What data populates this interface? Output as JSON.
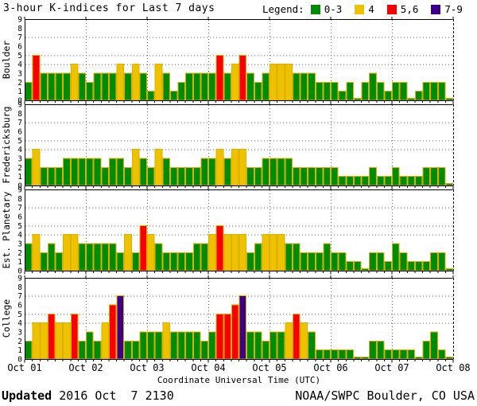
{
  "title": "3-hour K-indices for Last 7 days",
  "legend": {
    "label": "Legend:",
    "items": [
      {
        "label": "0-3",
        "color": "#008C00"
      },
      {
        "label": "4",
        "color": "#EDC301"
      },
      {
        "label": "5,6",
        "color": "#F80000"
      },
      {
        "label": "7-9",
        "color": "#3C0088"
      }
    ]
  },
  "x_axis": {
    "label": "Coordinate Universal Time (UTC)",
    "tick_labels": [
      "Oct 01",
      "Oct 02",
      "Oct 03",
      "Oct 04",
      "Oct 05",
      "Oct 06",
      "Oct 07",
      "Oct 08"
    ]
  },
  "footer": {
    "updated_label": "Updated",
    "updated_value": "2016 Oct  7 2130",
    "source": "NOAA/SWPC Boulder, CO USA"
  },
  "chart_data": {
    "type": "bar",
    "description": "3-hour K-indices, 8 bars per UTC day over 7 days (56 bars per station)",
    "ylim": [
      0,
      9
    ],
    "y_ticks": [
      0,
      1,
      2,
      3,
      4,
      5,
      6,
      7,
      8,
      9
    ],
    "threshold_gridlines": [
      4,
      5,
      7
    ],
    "days": 7,
    "bars_per_day": 8,
    "grid": "dotted day boundaries and K=4,5,7 levels",
    "legend_position": "top-right",
    "color_rules": [
      {
        "range": "0-3",
        "color": "#008C00"
      },
      {
        "range": "4",
        "color": "#EDC301"
      },
      {
        "range": "5,6",
        "color": "#F80000"
      },
      {
        "range": "7-9",
        "color": "#3C0088"
      }
    ],
    "bar_outline_color": "#DFAF00",
    "panels": [
      {
        "station": "Boulder",
        "k_by_day": [
          [
            2,
            5,
            3,
            3,
            3,
            3,
            4,
            3
          ],
          [
            2,
            3,
            3,
            3,
            4,
            3,
            4,
            3
          ],
          [
            1,
            4,
            3,
            1,
            2,
            3,
            3,
            3
          ],
          [
            3,
            5,
            3,
            4,
            5,
            3,
            2,
            3
          ],
          [
            4,
            4,
            4,
            3,
            3,
            3,
            2,
            2
          ],
          [
            2,
            1,
            2,
            0,
            2,
            3,
            2,
            1
          ],
          [
            2,
            2,
            0,
            1,
            2,
            2,
            2,
            0
          ]
        ]
      },
      {
        "station": "Fredericksburg",
        "k_by_day": [
          [
            3,
            4,
            2,
            2,
            2,
            3,
            3,
            3
          ],
          [
            3,
            3,
            2,
            3,
            3,
            2,
            4,
            3
          ],
          [
            2,
            4,
            3,
            2,
            2,
            2,
            2,
            3
          ],
          [
            3,
            4,
            3,
            4,
            4,
            2,
            2,
            3
          ],
          [
            3,
            3,
            3,
            2,
            2,
            2,
            2,
            2
          ],
          [
            2,
            1,
            1,
            1,
            1,
            2,
            1,
            1
          ],
          [
            2,
            1,
            1,
            1,
            2,
            2,
            2,
            0
          ]
        ]
      },
      {
        "station": "Est. Planetary",
        "k_by_day": [
          [
            3,
            4,
            2,
            3,
            2,
            4,
            4,
            3
          ],
          [
            3,
            3,
            3,
            3,
            2,
            4,
            2,
            5
          ],
          [
            4,
            3,
            2,
            2,
            2,
            2,
            3,
            3
          ],
          [
            4,
            5,
            4,
            4,
            4,
            2,
            3,
            4
          ],
          [
            4,
            4,
            3,
            3,
            2,
            2,
            2,
            3
          ],
          [
            2,
            2,
            1,
            1,
            0,
            2,
            2,
            1
          ],
          [
            3,
            2,
            1,
            1,
            1,
            2,
            2,
            0
          ]
        ]
      },
      {
        "station": "College",
        "k_by_day": [
          [
            2,
            4,
            4,
            5,
            4,
            4,
            5,
            2
          ],
          [
            3,
            2,
            4,
            6,
            7,
            2,
            2,
            3
          ],
          [
            3,
            3,
            4,
            3,
            3,
            3,
            3,
            2
          ],
          [
            3,
            5,
            5,
            6,
            7,
            3,
            3,
            2
          ],
          [
            3,
            3,
            4,
            5,
            4,
            3,
            1,
            1
          ],
          [
            1,
            1,
            1,
            0,
            0,
            2,
            2,
            1
          ],
          [
            1,
            1,
            1,
            0,
            2,
            3,
            1,
            0
          ]
        ]
      }
    ]
  }
}
